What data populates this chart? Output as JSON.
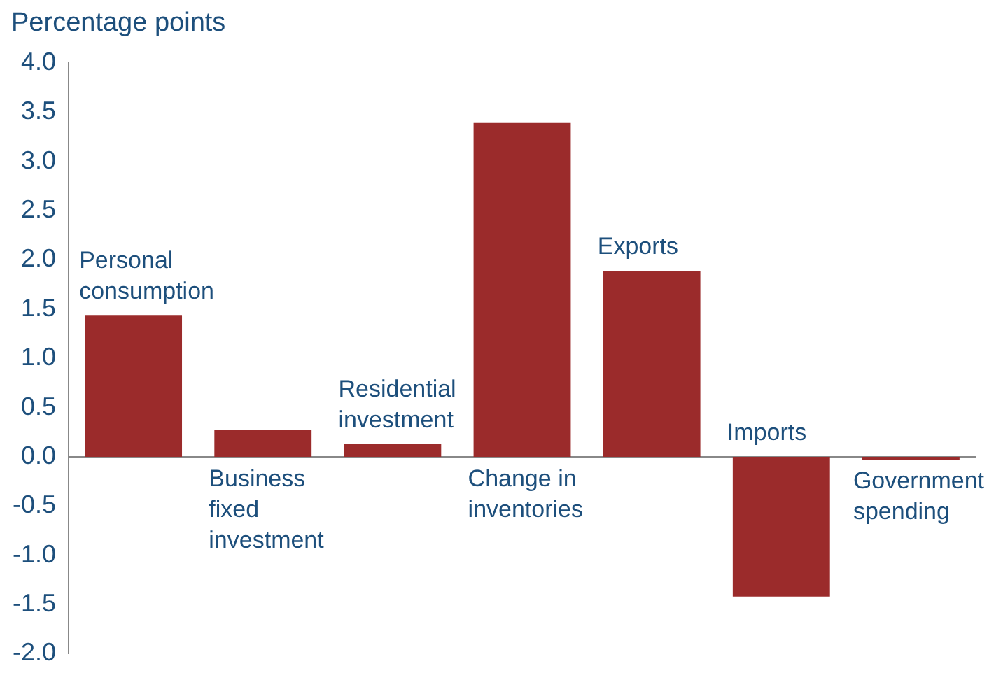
{
  "chart_data": {
    "type": "bar",
    "ylabel": "Percentage points",
    "categories": [
      "Personal consumption",
      "Business fixed investment",
      "Residential investment",
      "Change in inventories",
      "Exports",
      "Imports",
      "Government spending"
    ],
    "values": [
      1.44,
      0.27,
      0.13,
      3.39,
      1.89,
      -1.42,
      -0.03
    ],
    "color": "#9b2b2b",
    "ylim": [
      -2,
      4
    ],
    "yticks": [
      {
        "value": 4,
        "label": "4.0"
      },
      {
        "value": 3.5,
        "label": "3.5"
      },
      {
        "value": 3,
        "label": "3.0"
      },
      {
        "value": 2.5,
        "label": "2.5"
      },
      {
        "value": 2,
        "label": "2.0"
      },
      {
        "value": 1.5,
        "label": "1.5"
      },
      {
        "value": 1,
        "label": "1.0"
      },
      {
        "value": 0.5,
        "label": "0.5"
      },
      {
        "value": 0,
        "label": "0.0"
      },
      {
        "value": -0.5,
        "label": "-0.5"
      },
      {
        "value": -1,
        "label": "-1.0"
      },
      {
        "value": -1.5,
        "label": "-1.5"
      },
      {
        "value": -2,
        "label": "-2.0"
      }
    ]
  }
}
